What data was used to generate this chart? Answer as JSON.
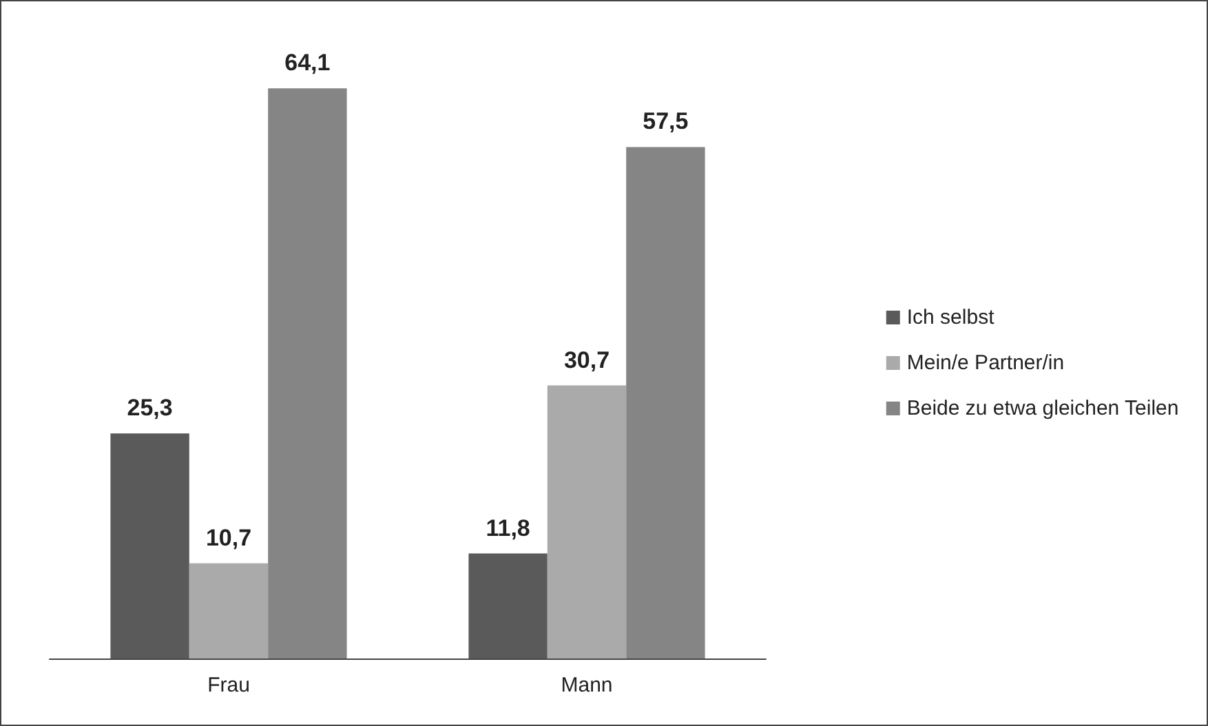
{
  "chart_data": {
    "type": "bar",
    "categories": [
      "Frau",
      "Mann"
    ],
    "series": [
      {
        "name": "Ich selbst",
        "color": "#5a5a5a",
        "values": [
          25.3,
          11.8
        ],
        "value_labels": [
          "25,3",
          "11,8"
        ]
      },
      {
        "name": "Mein/e Partner/in",
        "color": "#aaaaaa",
        "values": [
          10.7,
          30.7
        ],
        "value_labels": [
          "10,7",
          "30,7"
        ]
      },
      {
        "name": "Beide zu etwa gleichen Teilen",
        "color": "#858585",
        "values": [
          64.1,
          57.5
        ],
        "value_labels": [
          "64,1",
          "57,5"
        ]
      }
    ],
    "legend": "right"
  }
}
